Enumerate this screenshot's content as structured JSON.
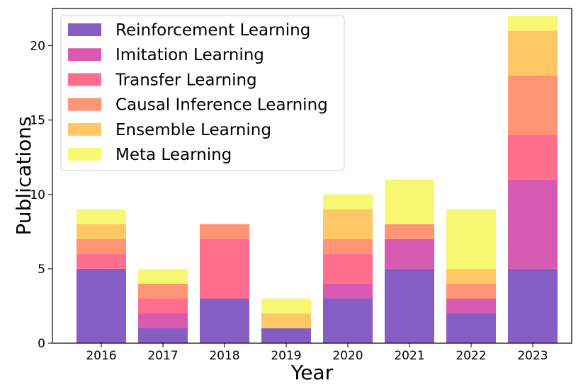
{
  "chart_data": {
    "type": "bar",
    "stacked": true,
    "categories": [
      "2016",
      "2017",
      "2018",
      "2019",
      "2020",
      "2021",
      "2022",
      "2023"
    ],
    "series": [
      {
        "name": "Reinforcement Learning",
        "color": "#855EC4",
        "values": [
          5,
          1,
          3,
          1,
          3,
          5,
          2,
          5
        ]
      },
      {
        "name": "Imitation Learning",
        "color": "#D65BB1",
        "values": [
          0,
          1,
          0,
          0,
          1,
          2,
          1,
          6
        ]
      },
      {
        "name": "Transfer Learning",
        "color": "#FF6E8C",
        "values": [
          1,
          1,
          4,
          0,
          2,
          0,
          0,
          3
        ]
      },
      {
        "name": "Causal Inference Learning",
        "color": "#FF9574",
        "values": [
          1,
          1,
          1,
          0,
          1,
          1,
          1,
          4
        ]
      },
      {
        "name": "Ensemble Learning",
        "color": "#FFC766",
        "values": [
          1,
          0,
          0,
          1,
          2,
          0,
          1,
          3
        ]
      },
      {
        "name": "Meta Learning",
        "color": "#F6F773",
        "values": [
          1,
          1,
          0,
          1,
          1,
          3,
          4,
          1
        ]
      }
    ],
    "xlabel": "Year",
    "ylabel": "Publications",
    "ylim": [
      0,
      22.5
    ],
    "yticks": [
      0,
      5,
      10,
      15,
      20
    ],
    "grid": false,
    "legend_position": "top-left"
  }
}
